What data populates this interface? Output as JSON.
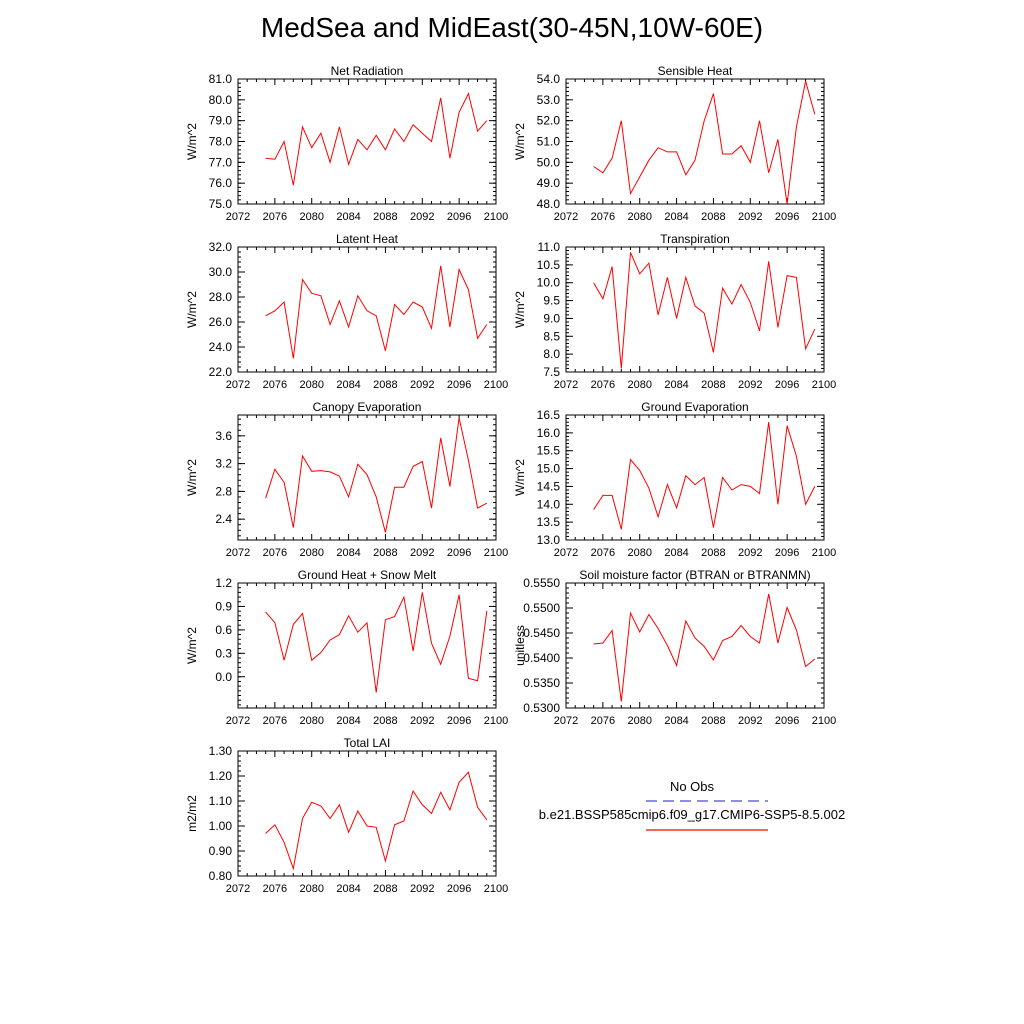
{
  "figure": {
    "title": "MedSea and MidEast(30-45N,10W-60E)"
  },
  "legend": {
    "obs_label": "No Obs",
    "obs_color": "#4b4bd6",
    "model_label": "b.e21.BSSP585cmip6.f09_g17.CMIP6-SSP5-8.5.002",
    "model_color": "#ff0000"
  },
  "chart_data": [
    {
      "type": "line",
      "title": "Net Radiation",
      "xlabel": "",
      "ylabel": "W/m^2",
      "xlim": [
        2072,
        2100
      ],
      "ylim": [
        75.0,
        81.0
      ],
      "xticks": [
        "2072",
        "2076",
        "2080",
        "2084",
        "2088",
        "2092",
        "2096",
        "2100"
      ],
      "yticks": [
        "75.0",
        "76.0",
        "77.0",
        "78.0",
        "79.0",
        "80.0",
        "81.0"
      ],
      "grid": false,
      "series": [
        {
          "color": "#ff0000",
          "x": [
            2075,
            2076,
            2077,
            2078,
            2079,
            2080,
            2081,
            2082,
            2083,
            2084,
            2085,
            2086,
            2087,
            2088,
            2089,
            2090,
            2091,
            2092,
            2093,
            2094,
            2095,
            2096,
            2097,
            2098,
            2099
          ],
          "y": [
            77.2,
            77.15,
            78.0,
            75.9,
            78.7,
            77.7,
            78.4,
            77.0,
            78.7,
            76.9,
            78.1,
            77.6,
            78.3,
            77.6,
            78.6,
            78.0,
            78.8,
            78.4,
            78.0,
            80.1,
            77.2,
            79.4,
            80.3,
            78.5,
            79.0
          ]
        }
      ]
    },
    {
      "type": "line",
      "title": "Sensible Heat",
      "xlabel": "",
      "ylabel": "W/m^2",
      "xlim": [
        2072,
        2100
      ],
      "ylim": [
        48.0,
        54.0
      ],
      "xticks": [
        "2072",
        "2076",
        "2080",
        "2084",
        "2088",
        "2092",
        "2096",
        "2100"
      ],
      "yticks": [
        "48.0",
        "49.0",
        "50.0",
        "51.0",
        "52.0",
        "53.0",
        "54.0"
      ],
      "grid": false,
      "series": [
        {
          "color": "#ff0000",
          "x": [
            2075,
            2076,
            2077,
            2078,
            2079,
            2080,
            2081,
            2082,
            2083,
            2084,
            2085,
            2086,
            2087,
            2088,
            2089,
            2090,
            2091,
            2092,
            2093,
            2094,
            2095,
            2096,
            2097,
            2098,
            2099
          ],
          "y": [
            49.8,
            49.5,
            50.2,
            52.0,
            48.5,
            49.3,
            50.1,
            50.7,
            50.5,
            50.5,
            49.4,
            50.1,
            52.0,
            53.3,
            50.4,
            50.4,
            50.8,
            50.0,
            52.0,
            49.5,
            51.1,
            48.0,
            51.7,
            53.9,
            52.3
          ]
        }
      ]
    },
    {
      "type": "line",
      "title": "Latent Heat",
      "xlabel": "",
      "ylabel": "W/m^2",
      "xlim": [
        2072,
        2100
      ],
      "ylim": [
        22.0,
        32.0
      ],
      "xticks": [
        "2072",
        "2076",
        "2080",
        "2084",
        "2088",
        "2092",
        "2096",
        "2100"
      ],
      "yticks": [
        "22.0",
        "24.0",
        "26.0",
        "28.0",
        "30.0",
        "32.0"
      ],
      "grid": false,
      "series": [
        {
          "color": "#ff0000",
          "x": [
            2075,
            2076,
            2077,
            2078,
            2079,
            2080,
            2081,
            2082,
            2083,
            2084,
            2085,
            2086,
            2087,
            2088,
            2089,
            2090,
            2091,
            2092,
            2093,
            2094,
            2095,
            2096,
            2097,
            2098,
            2099
          ],
          "y": [
            26.5,
            26.9,
            27.6,
            23.1,
            29.4,
            28.3,
            28.1,
            25.8,
            27.7,
            25.6,
            28.1,
            26.9,
            26.5,
            23.7,
            27.4,
            26.6,
            27.6,
            27.2,
            25.5,
            30.5,
            25.6,
            30.2,
            28.6,
            24.7,
            25.8
          ]
        }
      ]
    },
    {
      "type": "line",
      "title": "Transpiration",
      "xlabel": "",
      "ylabel": "W/m^2",
      "xlim": [
        2072,
        2100
      ],
      "ylim": [
        7.5,
        11.0
      ],
      "xticks": [
        "2072",
        "2076",
        "2080",
        "2084",
        "2088",
        "2092",
        "2096",
        "2100"
      ],
      "yticks": [
        "7.5",
        "8.0",
        "8.5",
        "9.0",
        "9.5",
        "10.0",
        "10.5",
        "11.0"
      ],
      "grid": false,
      "series": [
        {
          "color": "#ff0000",
          "x": [
            2075,
            2076,
            2077,
            2078,
            2079,
            2080,
            2081,
            2082,
            2083,
            2084,
            2085,
            2086,
            2087,
            2088,
            2089,
            2090,
            2091,
            2092,
            2093,
            2094,
            2095,
            2096,
            2097,
            2098,
            2099
          ],
          "y": [
            10.0,
            9.55,
            10.45,
            7.6,
            10.85,
            10.25,
            10.55,
            9.1,
            10.15,
            9.0,
            10.15,
            9.35,
            9.15,
            8.05,
            9.85,
            9.4,
            9.95,
            9.45,
            8.65,
            10.6,
            8.75,
            10.2,
            10.15,
            8.15,
            8.7
          ]
        }
      ]
    },
    {
      "type": "line",
      "title": "Canopy Evaporation",
      "xlabel": "",
      "ylabel": "W/m^2",
      "xlim": [
        2072,
        2100
      ],
      "ylim": [
        2.1,
        3.9
      ],
      "xticks": [
        "2072",
        "2076",
        "2080",
        "2084",
        "2088",
        "2092",
        "2096",
        "2100"
      ],
      "yticks": [
        "2.4",
        "2.8",
        "3.2",
        "3.6"
      ],
      "grid": false,
      "series": [
        {
          "color": "#ff0000",
          "x": [
            2075,
            2076,
            2077,
            2078,
            2079,
            2080,
            2081,
            2082,
            2083,
            2084,
            2085,
            2086,
            2087,
            2088,
            2089,
            2090,
            2091,
            2092,
            2093,
            2094,
            2095,
            2096,
            2097,
            2098,
            2099
          ],
          "y": [
            2.7,
            3.12,
            2.93,
            2.28,
            3.31,
            3.09,
            3.1,
            3.08,
            3.02,
            2.72,
            3.19,
            3.04,
            2.72,
            2.21,
            2.86,
            2.86,
            3.16,
            3.23,
            2.56,
            3.57,
            2.87,
            3.86,
            3.25,
            2.56,
            2.63
          ]
        }
      ]
    },
    {
      "type": "line",
      "title": "Ground Evaporation",
      "xlabel": "",
      "ylabel": "W/m^2",
      "xlim": [
        2072,
        2100
      ],
      "ylim": [
        13.0,
        16.5
      ],
      "xticks": [
        "2072",
        "2076",
        "2080",
        "2084",
        "2088",
        "2092",
        "2096",
        "2100"
      ],
      "yticks": [
        "13.0",
        "13.5",
        "14.0",
        "14.5",
        "15.0",
        "15.5",
        "16.0",
        "16.5"
      ],
      "grid": false,
      "series": [
        {
          "color": "#ff0000",
          "x": [
            2075,
            2076,
            2077,
            2078,
            2079,
            2080,
            2081,
            2082,
            2083,
            2084,
            2085,
            2086,
            2087,
            2088,
            2089,
            2090,
            2091,
            2092,
            2093,
            2094,
            2095,
            2096,
            2097,
            2098,
            2099
          ],
          "y": [
            13.85,
            14.25,
            14.25,
            13.3,
            15.25,
            14.95,
            14.45,
            13.65,
            14.55,
            13.9,
            14.8,
            14.55,
            14.75,
            13.35,
            14.75,
            14.4,
            14.55,
            14.5,
            14.3,
            16.3,
            14.0,
            16.2,
            15.35,
            14.0,
            14.5
          ]
        }
      ]
    },
    {
      "type": "line",
      "title": "Ground Heat + Snow Melt",
      "xlabel": "",
      "ylabel": "W/m^2",
      "xlim": [
        2072,
        2100
      ],
      "ylim": [
        -0.4,
        1.2
      ],
      "xticks": [
        "2072",
        "2076",
        "2080",
        "2084",
        "2088",
        "2092",
        "2096",
        "2100"
      ],
      "yticks": [
        "0.0",
        "0.3",
        "0.6",
        "0.9",
        "1.2"
      ],
      "grid": false,
      "series": [
        {
          "color": "#ff0000",
          "x": [
            2075,
            2076,
            2077,
            2078,
            2079,
            2080,
            2081,
            2082,
            2083,
            2084,
            2085,
            2086,
            2087,
            2088,
            2089,
            2090,
            2091,
            2092,
            2093,
            2094,
            2095,
            2096,
            2097,
            2098,
            2099
          ],
          "y": [
            0.83,
            0.69,
            0.21,
            0.67,
            0.81,
            0.21,
            0.31,
            0.47,
            0.54,
            0.78,
            0.57,
            0.69,
            -0.2,
            0.73,
            0.77,
            1.02,
            0.33,
            1.08,
            0.43,
            0.16,
            0.52,
            1.05,
            -0.02,
            -0.05,
            0.84
          ]
        }
      ]
    },
    {
      "type": "line",
      "title": "Soil moisture factor (BTRAN or BTRANMN)",
      "xlabel": "",
      "ylabel": "unitless",
      "xlim": [
        2072,
        2100
      ],
      "ylim": [
        0.53,
        0.555
      ],
      "xticks": [
        "2072",
        "2076",
        "2080",
        "2084",
        "2088",
        "2092",
        "2096",
        "2100"
      ],
      "yticks": [
        "0.5300",
        "0.5350",
        "0.5400",
        "0.5450",
        "0.5500",
        "0.5550"
      ],
      "grid": false,
      "series": [
        {
          "color": "#ff0000",
          "x": [
            2075,
            2076,
            2077,
            2078,
            2079,
            2080,
            2081,
            2082,
            2083,
            2084,
            2085,
            2086,
            2087,
            2088,
            2089,
            2090,
            2091,
            2092,
            2093,
            2094,
            2095,
            2096,
            2097,
            2098,
            2099
          ],
          "y": [
            0.5428,
            0.543,
            0.5455,
            0.5313,
            0.549,
            0.5452,
            0.5487,
            0.5459,
            0.5425,
            0.5385,
            0.5474,
            0.544,
            0.5423,
            0.5396,
            0.5435,
            0.5443,
            0.5465,
            0.5443,
            0.543,
            0.5528,
            0.543,
            0.5501,
            0.5456,
            0.5383,
            0.5398
          ]
        }
      ]
    },
    {
      "type": "line",
      "title": "Total LAI",
      "xlabel": "",
      "ylabel": "m2/m2",
      "xlim": [
        2072,
        2100
      ],
      "ylim": [
        0.8,
        1.3
      ],
      "xticks": [
        "2072",
        "2076",
        "2080",
        "2084",
        "2088",
        "2092",
        "2096",
        "2100"
      ],
      "yticks": [
        "0.80",
        "0.90",
        "1.00",
        "1.10",
        "1.20",
        "1.30"
      ],
      "grid": false,
      "series": [
        {
          "color": "#ff0000",
          "x": [
            2075,
            2076,
            2077,
            2078,
            2079,
            2080,
            2081,
            2082,
            2083,
            2084,
            2085,
            2086,
            2087,
            2088,
            2089,
            2090,
            2091,
            2092,
            2093,
            2094,
            2095,
            2096,
            2097,
            2098,
            2099
          ],
          "y": [
            0.97,
            1.005,
            0.935,
            0.83,
            1.03,
            1.095,
            1.08,
            1.03,
            1.085,
            0.975,
            1.06,
            1.0,
            0.995,
            0.86,
            1.005,
            1.02,
            1.14,
            1.085,
            1.05,
            1.135,
            1.065,
            1.175,
            1.215,
            1.075,
            1.025
          ]
        }
      ]
    }
  ]
}
